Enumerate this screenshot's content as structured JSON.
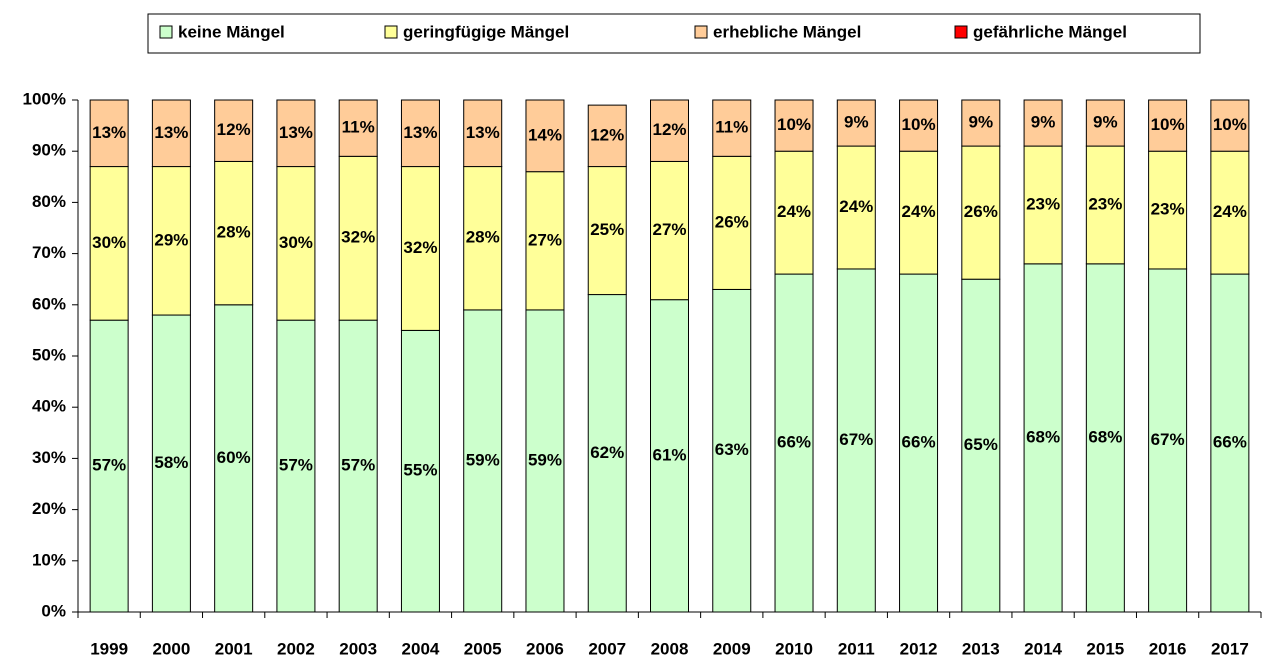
{
  "chart_data": {
    "type": "stacked-bar",
    "categories": [
      "1999",
      "2000",
      "2001",
      "2002",
      "2003",
      "2004",
      "2005",
      "2006",
      "2007",
      "2008",
      "2009",
      "2010",
      "2011",
      "2012",
      "2013",
      "2014",
      "2015",
      "2016",
      "2017"
    ],
    "series": [
      {
        "name": "keine Mängel",
        "color": "#ccffcc",
        "values": [
          57,
          58,
          60,
          57,
          57,
          55,
          59,
          59,
          62,
          61,
          63,
          66,
          67,
          66,
          65,
          68,
          68,
          67,
          66
        ],
        "value_labels": [
          "57%",
          "58%",
          "60%",
          "57%",
          "57%",
          "55%",
          "59%",
          "59%",
          "62%",
          "61%",
          "63%",
          "66%",
          "67%",
          "66%",
          "65%",
          "68%",
          "68%",
          "67%",
          "66%"
        ]
      },
      {
        "name": "geringfügige Mängel",
        "color": "#ffff99",
        "values": [
          30,
          29,
          28,
          30,
          32,
          32,
          28,
          27,
          25,
          27,
          26,
          24,
          24,
          24,
          26,
          23,
          23,
          23,
          24
        ],
        "value_labels": [
          "30%",
          "29%",
          "28%",
          "30%",
          "32%",
          "32%",
          "28%",
          "27%",
          "25%",
          "27%",
          "26%",
          "24%",
          "24%",
          "24%",
          "26%",
          "23%",
          "23%",
          "23%",
          "24%"
        ]
      },
      {
        "name": "erhebliche Mängel",
        "color": "#ffcc99",
        "values": [
          13,
          13,
          12,
          13,
          11,
          13,
          13,
          14,
          12,
          12,
          11,
          10,
          9,
          10,
          9,
          9,
          9,
          10,
          10
        ],
        "value_labels": [
          "13%",
          "13%",
          "12%",
          "13%",
          "11%",
          "13%",
          "13%",
          "14%",
          "12%",
          "12%",
          "11%",
          "10%",
          "9%",
          "10%",
          "9%",
          "9%",
          "9%",
          "10%",
          "10%"
        ]
      },
      {
        "name": "gefährliche Mängel",
        "color": "#ff0000",
        "values": [
          0,
          0,
          0,
          0,
          0,
          0,
          0,
          0,
          0,
          0,
          0,
          0,
          0,
          0,
          0,
          0,
          0,
          0,
          0
        ]
      }
    ],
    "ylim": [
      0,
      100
    ],
    "yticks": [
      {
        "value": 0,
        "label": "0%"
      },
      {
        "value": 10,
        "label": "10%"
      },
      {
        "value": 20,
        "label": "20%"
      },
      {
        "value": 30,
        "label": "30%"
      },
      {
        "value": 40,
        "label": "40%"
      },
      {
        "value": 50,
        "label": "50%"
      },
      {
        "value": 60,
        "label": "60%"
      },
      {
        "value": 70,
        "label": "70%"
      },
      {
        "value": 80,
        "label": "80%"
      },
      {
        "value": 90,
        "label": "90%"
      },
      {
        "value": 100,
        "label": "100%"
      }
    ],
    "legend": "top"
  }
}
